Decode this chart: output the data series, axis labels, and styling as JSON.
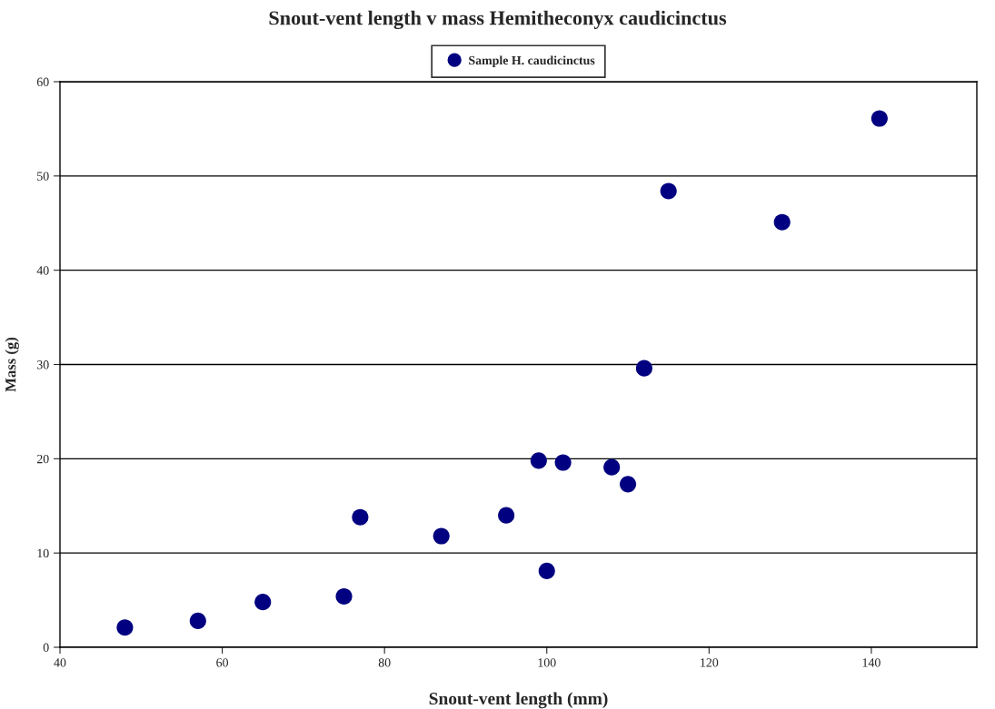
{
  "chart_data": {
    "type": "scatter",
    "title": "Snout-vent length v mass Hemitheconyx caudicinctus",
    "xlabel": "Snout-vent length (mm)",
    "ylabel": "Mass (g)",
    "series": [
      {
        "name": "Sample H. caudicinctus",
        "color": "#000080",
        "x": [
          48,
          57,
          65,
          75,
          77,
          87,
          95,
          100,
          99,
          102,
          108,
          110,
          112,
          115,
          129,
          141
        ],
        "values": [
          2.1,
          2.8,
          4.8,
          5.4,
          13.8,
          11.8,
          14.0,
          8.1,
          19.8,
          19.6,
          19.1,
          17.3,
          29.6,
          48.4,
          45.1,
          56.1
        ]
      }
    ],
    "xlim": [
      40,
      153
    ],
    "xticks": [
      40,
      60,
      80,
      100,
      120,
      140
    ],
    "ylim": [
      0,
      60
    ],
    "yticks": [
      0,
      10,
      20,
      30,
      40,
      50,
      60
    ],
    "grid": "y",
    "legend": "top",
    "marker": "circle"
  }
}
